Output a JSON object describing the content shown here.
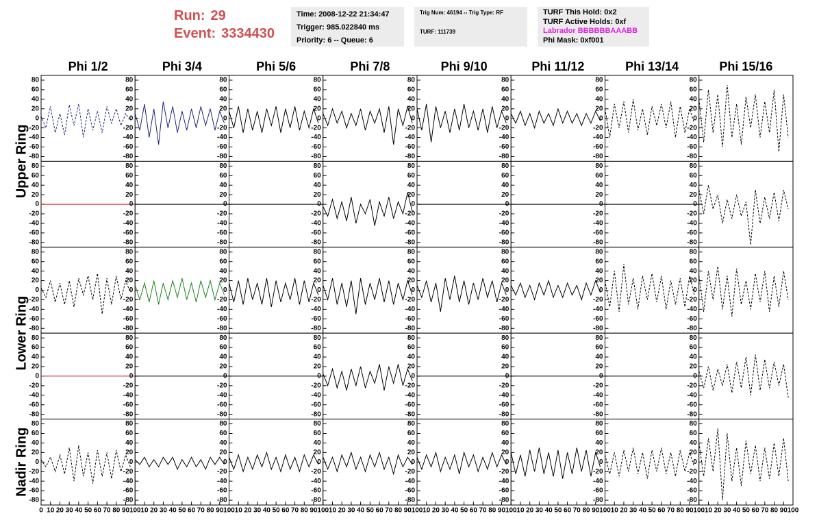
{
  "header": {
    "run_label": "Run:",
    "run": "29",
    "event_label": "Event:",
    "event": "3334430"
  },
  "info": [
    [
      "Time: 2008-12-22 21:34:47",
      "Trigger: 985.022840 ms",
      "Priority: 6 -- Queue: 6"
    ],
    [
      "Trig Num: 46194 -- Trig Type: RF",
      "TURF: 111739"
    ],
    [
      "TURF This Hold: 0x2",
      "TURF Active Holds: 0xf",
      "Labrador BBBBBBAAABB",
      "Phi Mask: 0xf001"
    ]
  ],
  "chart_data": {
    "type": "line",
    "columns": [
      "Phi 1/2",
      "Phi 3/4",
      "Phi 5/6",
      "Phi 7/8",
      "Phi 9/10",
      "Phi 11/12",
      "Phi 13/14",
      "Phi 15/16"
    ],
    "row_labels": [
      "Upper Ring",
      "Lower Ring",
      "Nadir Ring"
    ],
    "xlim": [
      0,
      100
    ],
    "ylim": [
      -90,
      90
    ],
    "xticks": [
      0,
      10,
      20,
      30,
      40,
      50,
      60,
      70,
      80,
      90,
      100
    ],
    "yticks": [
      -80,
      -60,
      -40,
      -20,
      0,
      20,
      40,
      60,
      80
    ],
    "x": [
      0,
      5,
      10,
      15,
      20,
      25,
      30,
      35,
      40,
      45,
      50,
      55,
      60,
      65,
      70,
      75,
      80,
      85,
      90,
      95
    ],
    "panels": [
      [
        {
          "color": "#202080",
          "dashed": true,
          "values": [
            5,
            -20,
            25,
            -30,
            10,
            -35,
            28,
            -15,
            30,
            -40,
            20,
            -25,
            15,
            -30,
            25,
            -10,
            20,
            -15,
            10,
            -5
          ]
        },
        {
          "color": "#202080",
          "dashed": false,
          "values": [
            10,
            -25,
            30,
            -40,
            20,
            -55,
            35,
            -20,
            25,
            -30,
            15,
            -25,
            20,
            -20,
            25,
            -15,
            20,
            -25,
            15,
            -10
          ]
        },
        {
          "color": "#000000",
          "dashed": false,
          "values": [
            15,
            -20,
            25,
            -30,
            20,
            -25,
            15,
            -30,
            20,
            -15,
            25,
            -30,
            20,
            -20,
            25,
            -25,
            15,
            -20,
            20,
            -10
          ]
        },
        {
          "color": "#000000",
          "dashed": false,
          "values": [
            10,
            -15,
            20,
            -10,
            15,
            -20,
            10,
            -15,
            20,
            -25,
            15,
            -10,
            20,
            -30,
            25,
            -55,
            20,
            -15,
            25,
            -10
          ]
        },
        {
          "color": "#000000",
          "dashed": false,
          "values": [
            20,
            -25,
            30,
            -50,
            25,
            -20,
            15,
            -30,
            20,
            -25,
            30,
            -20,
            15,
            -25,
            20,
            -30,
            25,
            -20,
            15,
            -10
          ]
        },
        {
          "color": "#000000",
          "dashed": false,
          "values": [
            10,
            -10,
            15,
            -15,
            10,
            -20,
            15,
            -10,
            10,
            -15,
            20,
            -10,
            15,
            -10,
            10,
            -15,
            10,
            -10,
            15,
            -5
          ]
        },
        {
          "color": "#000000",
          "dashed": true,
          "values": [
            20,
            -40,
            30,
            -20,
            35,
            -30,
            40,
            -25,
            20,
            -35,
            25,
            -15,
            30,
            -20,
            35,
            -40,
            25,
            -30,
            20,
            -10
          ]
        },
        {
          "color": "#000000",
          "dashed": true,
          "values": [
            40,
            -50,
            60,
            -30,
            50,
            -60,
            70,
            -40,
            30,
            -55,
            45,
            -20,
            50,
            -40,
            35,
            -30,
            60,
            -70,
            50,
            -40
          ]
        }
      ],
      [
        {
          "color": "#d02020",
          "dashed": false,
          "x": [
            0,
            100
          ],
          "values": [
            0,
            0
          ]
        },
        {
          "color": "#000000",
          "dashed": false,
          "x": [
            0,
            100
          ],
          "values": [
            0,
            0
          ]
        },
        {
          "color": "#000000",
          "dashed": false,
          "x": [
            0,
            100
          ],
          "values": [
            0,
            0
          ]
        },
        {
          "color": "#000000",
          "dashed": false,
          "values": [
            -5,
            -25,
            10,
            -30,
            5,
            -35,
            15,
            -40,
            0,
            -20,
            10,
            -45,
            5,
            -25,
            15,
            -30,
            5,
            -20,
            25,
            -15
          ]
        },
        {
          "color": "#000000",
          "dashed": false,
          "x": [
            0,
            100
          ],
          "values": [
            0,
            0
          ]
        },
        {
          "color": "#000000",
          "dashed": false,
          "x": [
            0,
            100
          ],
          "values": [
            0,
            0
          ]
        },
        {
          "color": "#000000",
          "dashed": false,
          "x": [
            0,
            100
          ],
          "values": [
            0,
            0
          ]
        },
        {
          "color": "#000000",
          "dashed": true,
          "values": [
            30,
            -20,
            40,
            -10,
            20,
            -40,
            10,
            -30,
            20,
            -25,
            5,
            -85,
            30,
            -40,
            15,
            -30,
            25,
            -35,
            30,
            -10
          ]
        }
      ],
      [
        {
          "color": "#000000",
          "dashed": true,
          "values": [
            5,
            -15,
            20,
            -25,
            15,
            -30,
            20,
            -35,
            25,
            -10,
            30,
            -20,
            35,
            -50,
            25,
            -30,
            30,
            -20,
            20,
            -5
          ]
        },
        {
          "color": "#208020",
          "dashed": false,
          "values": [
            10,
            -20,
            15,
            -25,
            20,
            -30,
            15,
            -20,
            20,
            -15,
            25,
            -20,
            15,
            -25,
            20,
            -15,
            20,
            -20,
            15,
            -10
          ]
        },
        {
          "color": "#000000",
          "dashed": false,
          "values": [
            15,
            -25,
            20,
            -30,
            25,
            -20,
            15,
            -30,
            25,
            -35,
            20,
            -25,
            15,
            -20,
            25,
            -30,
            20,
            -25,
            15,
            -10
          ]
        },
        {
          "color": "#000000",
          "dashed": false,
          "values": [
            10,
            -20,
            25,
            -30,
            15,
            -35,
            20,
            -50,
            25,
            -30,
            15,
            -20,
            25,
            -25,
            20,
            -30,
            15,
            -20,
            20,
            -10
          ]
        },
        {
          "color": "#000000",
          "dashed": false,
          "values": [
            10,
            -15,
            20,
            -25,
            15,
            -45,
            25,
            -20,
            30,
            -25,
            20,
            -30,
            15,
            -20,
            25,
            -15,
            20,
            -25,
            15,
            -10
          ]
        },
        {
          "color": "#000000",
          "dashed": false,
          "values": [
            10,
            -10,
            15,
            -15,
            10,
            -20,
            15,
            -10,
            20,
            -15,
            10,
            -15,
            15,
            -10,
            10,
            -20,
            15,
            -10,
            20,
            -5
          ]
        },
        {
          "color": "#000000",
          "dashed": true,
          "values": [
            20,
            -35,
            40,
            -45,
            55,
            -30,
            25,
            -40,
            30,
            -20,
            35,
            -25,
            30,
            -40,
            20,
            -30,
            25,
            -35,
            30,
            -10
          ]
        },
        {
          "color": "#000000",
          "dashed": true,
          "values": [
            30,
            -45,
            40,
            -20,
            50,
            -40,
            30,
            -55,
            45,
            -30,
            20,
            -40,
            35,
            -25,
            40,
            -45,
            30,
            -35,
            40,
            -20
          ]
        }
      ],
      [
        {
          "color": "#d02020",
          "dashed": false,
          "x": [
            0,
            100
          ],
          "values": [
            0,
            0
          ]
        },
        {
          "color": "#000000",
          "dashed": false,
          "x": [
            0,
            100
          ],
          "values": [
            0,
            0
          ]
        },
        {
          "color": "#000000",
          "dashed": false,
          "x": [
            0,
            100
          ],
          "values": [
            0,
            0
          ]
        },
        {
          "color": "#000000",
          "dashed": false,
          "values": [
            5,
            -20,
            15,
            -25,
            10,
            -30,
            15,
            -20,
            20,
            -25,
            10,
            -15,
            25,
            -30,
            20,
            -15,
            25,
            -20,
            15,
            -10
          ]
        },
        {
          "color": "#000000",
          "dashed": false,
          "x": [
            0,
            100
          ],
          "values": [
            0,
            0
          ]
        },
        {
          "color": "#000000",
          "dashed": false,
          "x": [
            0,
            100
          ],
          "values": [
            0,
            0
          ]
        },
        {
          "color": "#000000",
          "dashed": false,
          "x": [
            0,
            100
          ],
          "values": [
            0,
            0
          ]
        },
        {
          "color": "#000000",
          "dashed": true,
          "values": [
            10,
            -25,
            20,
            -30,
            15,
            -20,
            25,
            -35,
            30,
            -25,
            40,
            -40,
            45,
            -30,
            35,
            -25,
            30,
            -20,
            25,
            -45
          ]
        }
      ],
      [
        {
          "color": "#000000",
          "dashed": true,
          "values": [
            5,
            -10,
            10,
            -20,
            15,
            -25,
            30,
            -40,
            35,
            -30,
            20,
            -45,
            25,
            -30,
            20,
            -35,
            25,
            -20,
            15,
            -10
          ]
        },
        {
          "color": "#000000",
          "dashed": false,
          "values": [
            5,
            -5,
            10,
            -10,
            5,
            -10,
            10,
            -5,
            10,
            -15,
            5,
            -10,
            10,
            -10,
            5,
            -15,
            10,
            -5,
            10,
            -5
          ]
        },
        {
          "color": "#000000",
          "dashed": false,
          "values": [
            10,
            -15,
            15,
            -20,
            10,
            -15,
            15,
            -10,
            20,
            -15,
            10,
            -20,
            15,
            -15,
            10,
            -20,
            15,
            -10,
            15,
            -5
          ]
        },
        {
          "color": "#000000",
          "dashed": false,
          "values": [
            10,
            -15,
            10,
            -20,
            15,
            -10,
            20,
            -15,
            10,
            -20,
            15,
            -10,
            20,
            -15,
            10,
            -25,
            15,
            -10,
            10,
            -5
          ]
        },
        {
          "color": "#000000",
          "dashed": false,
          "values": [
            10,
            -15,
            15,
            -10,
            20,
            -20,
            10,
            -15,
            15,
            -25,
            20,
            -10,
            15,
            -20,
            10,
            -15,
            20,
            -10,
            15,
            -5
          ]
        },
        {
          "color": "#000000",
          "dashed": false,
          "values": [
            20,
            -25,
            15,
            -30,
            25,
            -20,
            30,
            -25,
            20,
            -30,
            25,
            -35,
            20,
            -25,
            30,
            -20,
            25,
            -30,
            20,
            -10
          ]
        },
        {
          "color": "#000000",
          "dashed": true,
          "values": [
            15,
            -25,
            20,
            -30,
            25,
            -20,
            30,
            -25,
            20,
            -35,
            25,
            -20,
            30,
            -25,
            20,
            -30,
            25,
            -20,
            20,
            -10
          ]
        },
        {
          "color": "#000000",
          "dashed": true,
          "values": [
            40,
            -30,
            50,
            -20,
            70,
            -80,
            60,
            -40,
            30,
            -50,
            45,
            -25,
            35,
            -40,
            30,
            -35,
            40,
            -30,
            50,
            -40
          ]
        }
      ]
    ]
  }
}
